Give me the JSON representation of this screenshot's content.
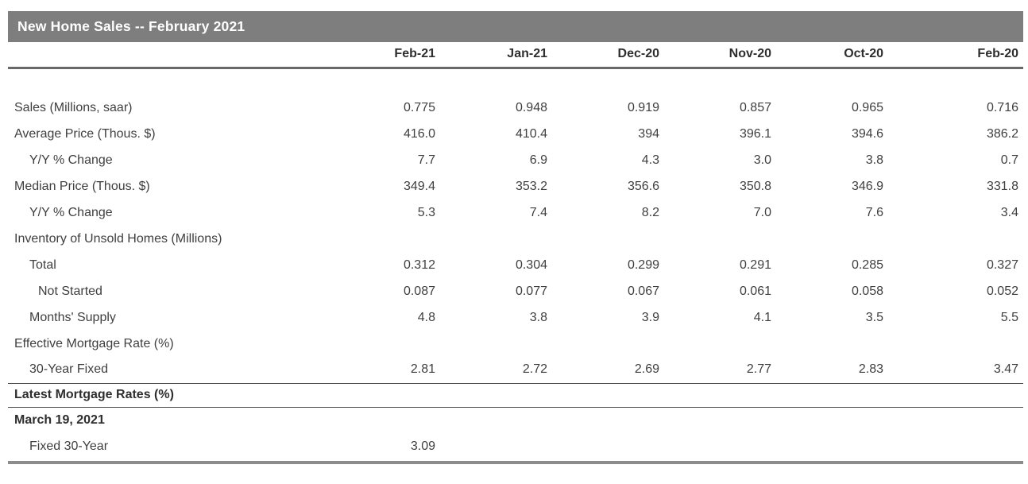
{
  "chart_data": {
    "type": "table",
    "title": "New Home Sales -- February 2021",
    "columns": [
      "Feb-21",
      "Jan-21",
      "Dec-20",
      "Nov-20",
      "Oct-20",
      "Feb-20"
    ],
    "rows": [
      {
        "label": "Sales (Millions, saar)",
        "indent": 0,
        "values": [
          "0.775",
          "0.948",
          "0.919",
          "0.857",
          "0.965",
          "0.716"
        ]
      },
      {
        "label": "Average Price (Thous. $)",
        "indent": 0,
        "values": [
          "416.0",
          "410.4",
          "394",
          "396.1",
          "394.6",
          "386.2"
        ]
      },
      {
        "label": "Y/Y % Change",
        "indent": 1,
        "values": [
          "7.7",
          "6.9",
          "4.3",
          "3.0",
          "3.8",
          "0.7"
        ]
      },
      {
        "label": "Median Price (Thous. $)",
        "indent": 0,
        "values": [
          "349.4",
          "353.2",
          "356.6",
          "350.8",
          "346.9",
          "331.8"
        ]
      },
      {
        "label": "Y/Y % Change",
        "indent": 1,
        "values": [
          "5.3",
          "7.4",
          "8.2",
          "7.0",
          "7.6",
          "3.4"
        ]
      },
      {
        "label": "Inventory of Unsold Homes (Millions)",
        "indent": 0,
        "values": [
          "",
          "",
          "",
          "",
          "",
          ""
        ]
      },
      {
        "label": "Total",
        "indent": 1,
        "values": [
          "0.312",
          "0.304",
          "0.299",
          "0.291",
          "0.285",
          "0.327"
        ]
      },
      {
        "label": "Not Started",
        "indent": 2,
        "values": [
          "0.087",
          "0.077",
          "0.067",
          "0.061",
          "0.058",
          "0.052"
        ]
      },
      {
        "label": "Months' Supply",
        "indent": 1,
        "values": [
          "4.8",
          "3.8",
          "3.9",
          "4.1",
          "3.5",
          "5.5"
        ]
      },
      {
        "label": "Effective Mortgage Rate (%)",
        "indent": 0,
        "values": [
          "",
          "",
          "",
          "",
          "",
          ""
        ]
      },
      {
        "label": "30-Year Fixed",
        "indent": 1,
        "values": [
          "2.81",
          "2.72",
          "2.69",
          "2.77",
          "2.83",
          "3.47"
        ]
      }
    ],
    "footer": {
      "section_title": "Latest Mortgage Rates (%)",
      "date": "March 19, 2021",
      "rate_row": {
        "label": "Fixed 30-Year",
        "values": [
          "3.09",
          "",
          "",
          "",
          "",
          ""
        ]
      }
    }
  },
  "colors": {
    "banner_bg": "#7e7e7e",
    "banner_text": "#ffffff",
    "header_text": "#2e2e2e",
    "text": "#3f3f3f",
    "header_rule": "#696969",
    "rule_dark": "#4a4a4a",
    "rule_gray": "#8c8c8c"
  }
}
